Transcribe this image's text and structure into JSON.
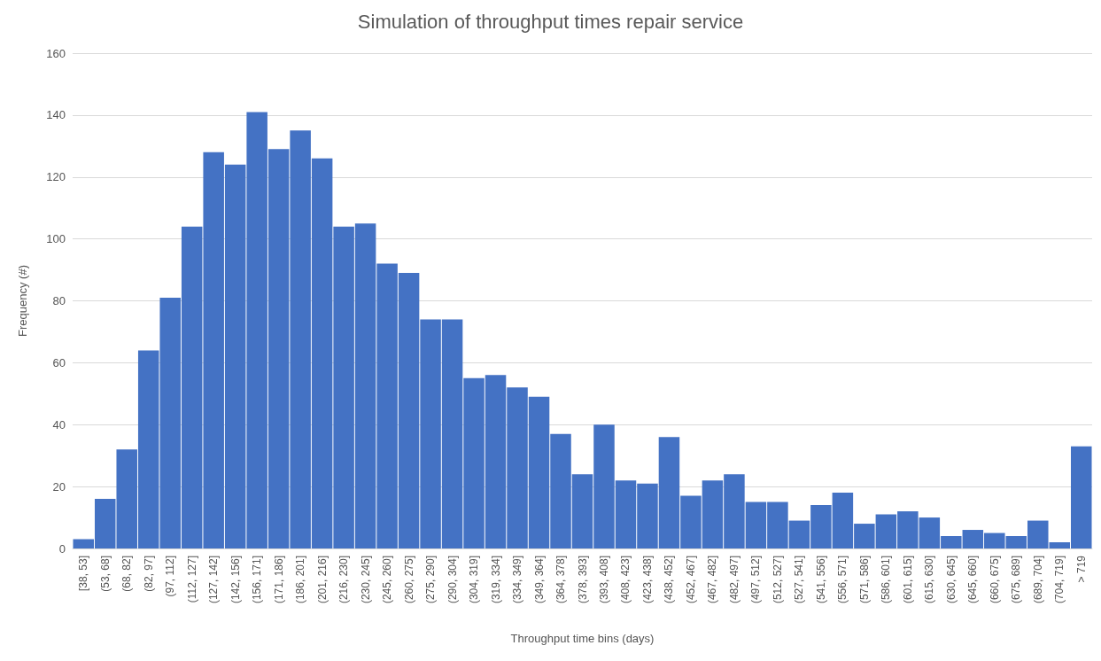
{
  "chart_data": {
    "type": "bar",
    "title": "Simulation of throughput times repair service",
    "xlabel": "Throughput time bins (days)",
    "ylabel": "Frequency (#)",
    "categories": [
      "[38, 53]",
      "(53, 68]",
      "(68, 82]",
      "(82, 97]",
      "(97, 112]",
      "(112, 127]",
      "(127, 142]",
      "(142, 156]",
      "(156, 171]",
      "(171, 186]",
      "(186, 201]",
      "(201, 216]",
      "(216, 230]",
      "(230, 245]",
      "(245, 260]",
      "(260, 275]",
      "(275, 290]",
      "(290, 304]",
      "(304, 319]",
      "(319, 334]",
      "(334, 349]",
      "(349, 364]",
      "(364, 378]",
      "(378, 393]",
      "(393, 408]",
      "(408, 423]",
      "(423, 438]",
      "(438, 452]",
      "(452, 467]",
      "(467, 482]",
      "(482, 497]",
      "(497, 512]",
      "(512, 527]",
      "(527, 541]",
      "(541, 556]",
      "(556, 571]",
      "(571, 586]",
      "(586, 601]",
      "(601, 615]",
      "(615, 630]",
      "(630, 645]",
      "(645, 660]",
      "(660, 675]",
      "(675, 689]",
      "(689, 704]",
      "(704, 719]",
      "> 719"
    ],
    "values": [
      3,
      16,
      32,
      64,
      81,
      104,
      128,
      124,
      141,
      129,
      135,
      126,
      104,
      105,
      92,
      89,
      74,
      74,
      55,
      56,
      52,
      49,
      37,
      24,
      40,
      22,
      21,
      36,
      17,
      22,
      24,
      15,
      15,
      9,
      14,
      18,
      8,
      11,
      12,
      10,
      4,
      6,
      5,
      4,
      9,
      2,
      33
    ],
    "color": "#4472c4",
    "ylim": [
      0,
      160
    ],
    "yticks": [
      0,
      20,
      40,
      60,
      80,
      100,
      120,
      140,
      160
    ],
    "grid": "y"
  }
}
